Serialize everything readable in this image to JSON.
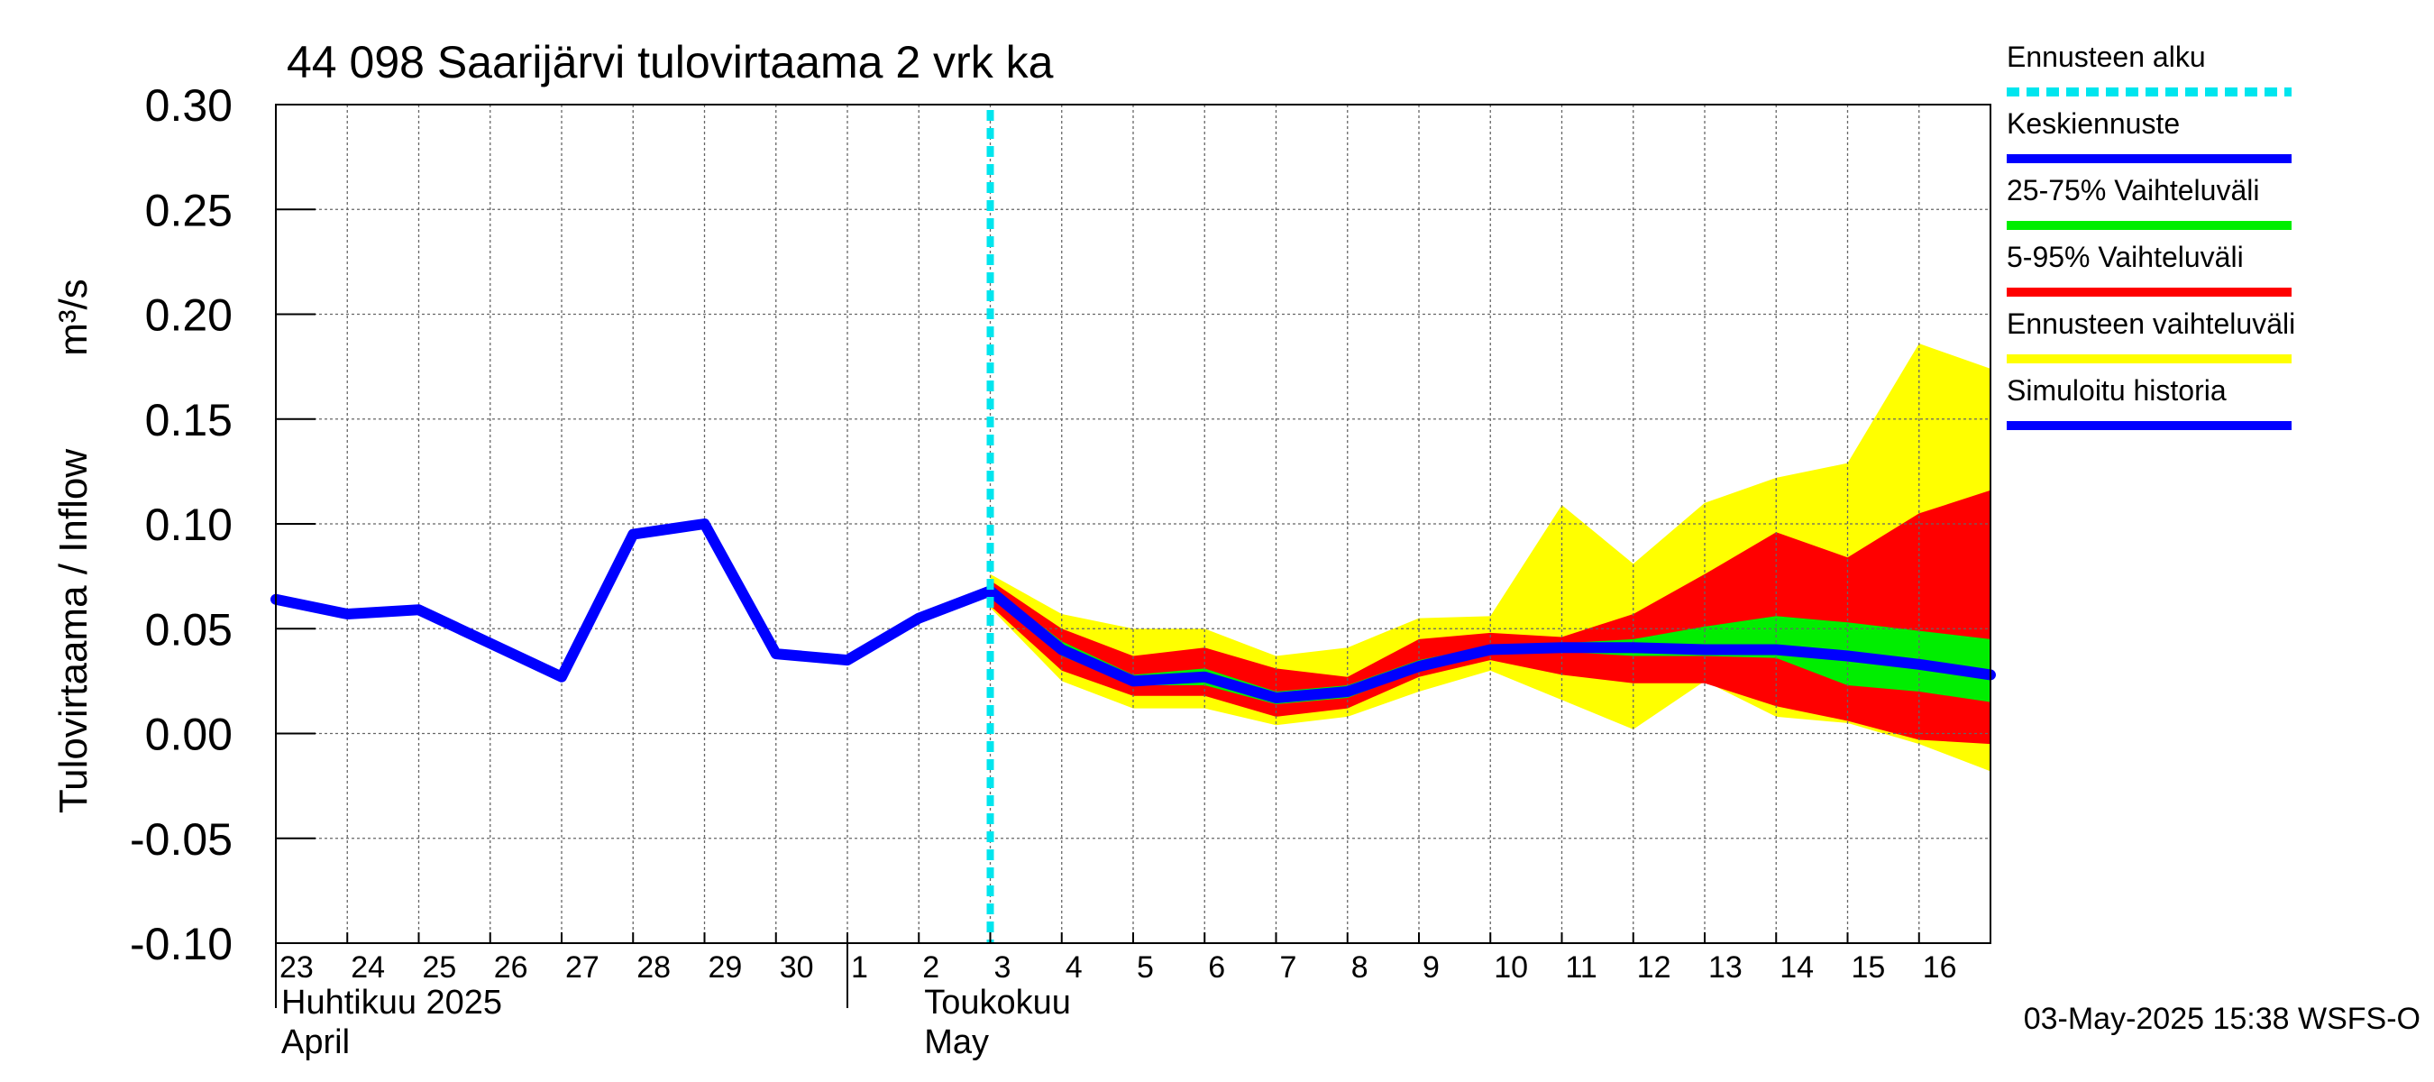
{
  "chart_data": {
    "type": "area",
    "title": "44 098 Saarijärvi tulovirtaama 2 vrk ka",
    "ylabel": "Tulovirtaama / Inflow",
    "yunit": "m³/s",
    "ylim": [
      -0.1,
      0.3
    ],
    "yticks": [
      "0.30",
      "0.25",
      "0.20",
      "0.15",
      "0.10",
      "0.05",
      "0.00",
      "-0.05",
      "-0.10"
    ],
    "ytick_values": [
      0.3,
      0.25,
      0.2,
      0.15,
      0.1,
      0.05,
      0.0,
      -0.05,
      -0.1
    ],
    "xlim": [
      0,
      24
    ],
    "x_tick_labels": [
      "23",
      "24",
      "25",
      "26",
      "27",
      "28",
      "29",
      "30",
      "1",
      "2",
      "3",
      "4",
      "5",
      "6",
      "7",
      "8",
      "9",
      "10",
      "11",
      "12",
      "13",
      "14",
      "15",
      "16"
    ],
    "month_labels": [
      {
        "line1": "Huhtikuu  2025",
        "line2": "April",
        "x": 0
      },
      {
        "line1": "Toukokuu",
        "line2": "May",
        "x": 9
      }
    ],
    "forecast_start_x": 10,
    "grid": true,
    "series": [
      {
        "name": "Simuloitu historia",
        "color": "#0000ff",
        "x": [
          0,
          1,
          2,
          3,
          4,
          5,
          6,
          7,
          8,
          9,
          10
        ],
        "y": [
          0.064,
          0.057,
          0.059,
          0.043,
          0.027,
          0.095,
          0.1,
          0.038,
          0.035,
          0.055,
          0.068
        ]
      },
      {
        "name": "Keskiennuste",
        "color": "#0000ff",
        "x": [
          10,
          11,
          12,
          13,
          14,
          15,
          16,
          17,
          18,
          19,
          20,
          21,
          22,
          23,
          24
        ],
        "y": [
          0.068,
          0.04,
          0.025,
          0.027,
          0.017,
          0.02,
          0.032,
          0.04,
          0.041,
          0.041,
          0.04,
          0.04,
          0.037,
          0.033,
          0.028
        ]
      }
    ],
    "bands": [
      {
        "name": "Ennusteen vaihteluväli",
        "color": "#ffff00",
        "x": [
          10,
          11,
          12,
          13,
          14,
          15,
          16,
          17,
          18,
          19,
          20,
          21,
          22,
          23,
          24
        ],
        "upper": [
          0.076,
          0.057,
          0.05,
          0.05,
          0.037,
          0.041,
          0.055,
          0.056,
          0.109,
          0.081,
          0.11,
          0.122,
          0.129,
          0.186,
          0.174
        ],
        "lower": [
          0.06,
          0.025,
          0.012,
          0.012,
          0.004,
          0.008,
          0.02,
          0.03,
          0.016,
          0.002,
          0.025,
          0.008,
          0.005,
          -0.005,
          -0.018
        ]
      },
      {
        "name": "5-95% Vaihteluväli",
        "color": "#ff0000",
        "x": [
          10,
          11,
          12,
          13,
          14,
          15,
          16,
          17,
          18,
          19,
          20,
          21,
          22,
          23,
          24
        ],
        "upper": [
          0.073,
          0.05,
          0.037,
          0.041,
          0.031,
          0.027,
          0.045,
          0.048,
          0.046,
          0.057,
          0.076,
          0.096,
          0.084,
          0.105,
          0.116
        ],
        "lower": [
          0.061,
          0.03,
          0.018,
          0.018,
          0.008,
          0.012,
          0.027,
          0.035,
          0.028,
          0.024,
          0.024,
          0.013,
          0.006,
          -0.003,
          -0.005
        ]
      },
      {
        "name": "25-75% Vaihteluväli",
        "color": "#00ee00",
        "x": [
          10,
          11,
          12,
          13,
          14,
          15,
          16,
          17,
          18,
          19,
          20,
          21,
          22,
          23,
          24
        ],
        "upper": [
          0.07,
          0.044,
          0.028,
          0.031,
          0.02,
          0.023,
          0.035,
          0.042,
          0.043,
          0.045,
          0.051,
          0.056,
          0.053,
          0.049,
          0.045
        ],
        "lower": [
          0.066,
          0.037,
          0.023,
          0.023,
          0.014,
          0.017,
          0.03,
          0.039,
          0.039,
          0.037,
          0.037,
          0.036,
          0.023,
          0.02,
          0.015
        ]
      }
    ],
    "legend": {
      "position": "right",
      "entries": [
        {
          "label": "Ennusteen alku",
          "color": "#00e5ee",
          "style": "dashed"
        },
        {
          "label": "Keskiennuste",
          "color": "#0000ff",
          "style": "solid"
        },
        {
          "label": "25-75% Vaihteluväli",
          "color": "#00ee00",
          "style": "solid"
        },
        {
          "label": "5-95% Vaihteluväli",
          "color": "#ff0000",
          "style": "solid"
        },
        {
          "label": "Ennusteen vaihteluväli",
          "color": "#ffff00",
          "style": "solid"
        },
        {
          "label": "Simuloitu historia",
          "color": "#0000ff",
          "style": "solid"
        }
      ]
    },
    "footer": "03-May-2025 15:38 WSFS-O"
  }
}
